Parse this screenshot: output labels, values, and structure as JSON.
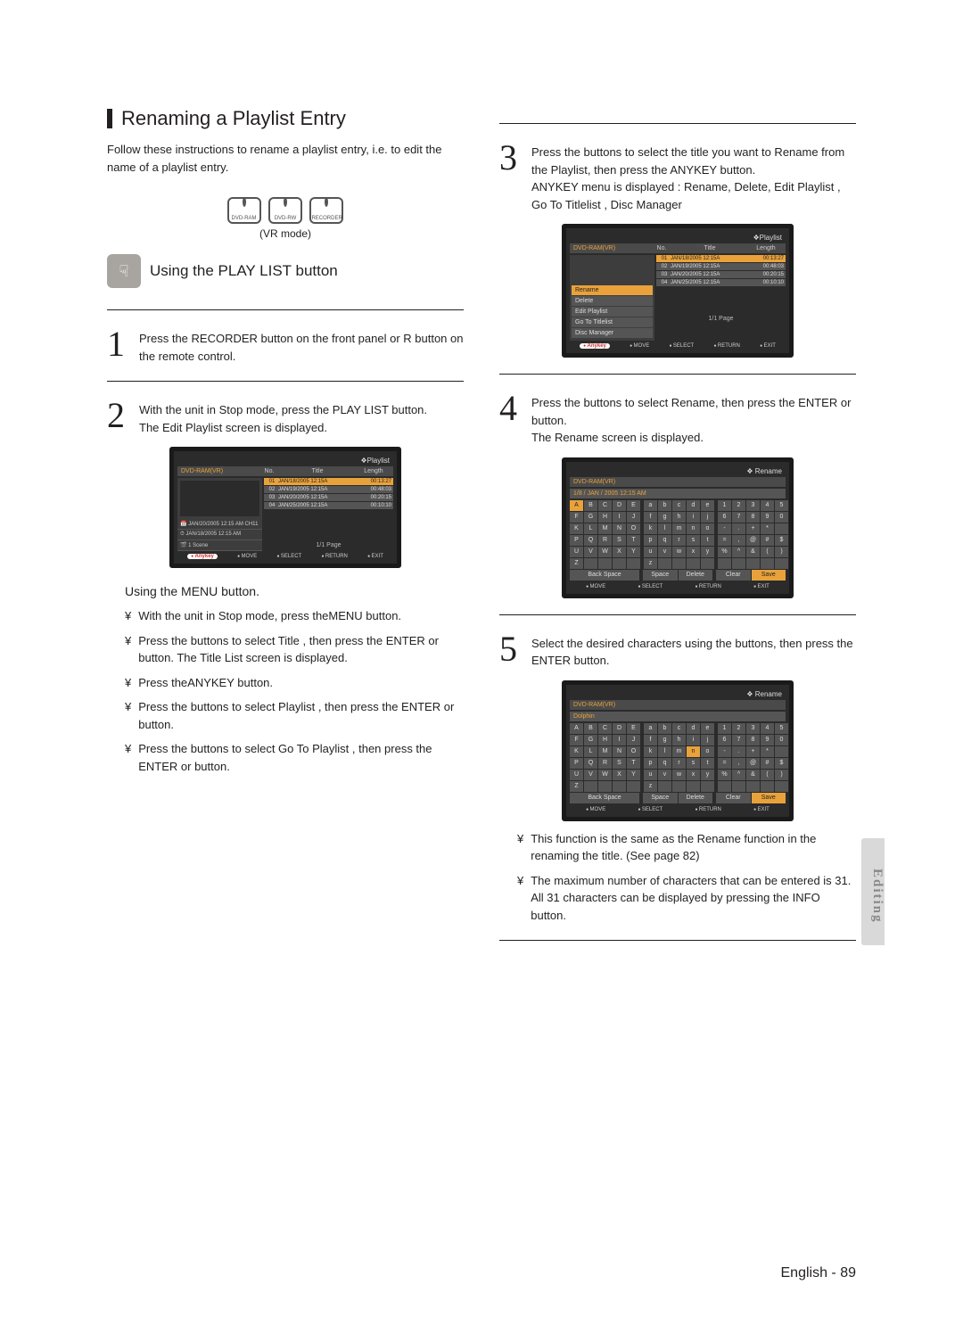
{
  "section_title": "Renaming a Playlist Entry",
  "intro": "Follow these instructions to rename a playlist entry, i.e. to edit the name of a playlist entry.",
  "badges": [
    "DVD-RAM",
    "DVD-RW",
    "RECORDER"
  ],
  "vr_mode": "(VR mode)",
  "sub1": "Using the PLAY LIST button",
  "step1": "Press the RECORDER button on the front panel or R button on the remote control.",
  "step2a": "With the unit in Stop mode, press the PLAY LIST button.",
  "step2b": "The Edit Playlist screen is displayed.",
  "menu_heading": "Using the MENU button.",
  "menu_bullets": [
    "With the unit in Stop mode, press theMENU button.",
    "Press the        buttons to select Title , then press the ENTER or        button. The Title List screen is displayed.",
    "Press theANYKEY button.",
    "Press the        buttons to select Playlist , then press the ENTER or        button.",
    "Press the        buttons to select Go To Playlist , then press the ENTER or        button."
  ],
  "step3": "Press the        buttons to select the title you want to Rename from the Playlist, then press the ANYKEY button.",
  "step3b": "ANYKEY menu is displayed : Rename, Delete, Edit Playlist , Go To Titlelist , Disc Manager",
  "step4": "Press the        buttons to select Rename, then press the ENTER or        button.",
  "step4b": "The Rename screen is displayed.",
  "step5": "Select the desired characters using the buttons, then press the ENTER button.",
  "notes": [
    "This function is the same as the Rename function in the renaming the title. (See page 82)",
    "The maximum number of characters that can be entered is 31. All 31 characters can be displayed by pressing the INFO button."
  ],
  "side_tab": "Editing",
  "page_footer": "English - 89",
  "ss_playlist": {
    "title": "Playlist",
    "device": "DVD-RAM(VR)",
    "cols": [
      "No.",
      "Title",
      "Length"
    ],
    "rows": [
      {
        "n": "01",
        "t": "JAN/18/2005 12:15A",
        "l": "00:13:27",
        "hl": true
      },
      {
        "n": "02",
        "t": "JAN/19/2005 12:15A",
        "l": "00:48:03"
      },
      {
        "n": "03",
        "t": "JAN/20/2005 12:15A",
        "l": "00:20:15"
      },
      {
        "n": "04",
        "t": "JAN/25/2005 12:15A",
        "l": "00:10:10"
      }
    ],
    "left_items": [
      "JAN/20/2005 12:15 AM CH11",
      "JAN/18/2005 12:15 AM",
      "1 Scene"
    ],
    "pager": "1/1 Page",
    "footer": [
      "MOVE",
      "SELECT",
      "RETURN",
      "EXIT"
    ],
    "anykey": "Anykey"
  },
  "ss_menu": {
    "title": "Playlist",
    "device": "DVD-RAM(VR)",
    "cols": [
      "No.",
      "Title",
      "Length"
    ],
    "rows": [
      {
        "n": "01",
        "t": "JAN/18/2005 12:15A",
        "l": "00:13:27",
        "hl": true
      },
      {
        "n": "02",
        "t": "JAN/19/2005 12:15A",
        "l": "00:48:03"
      },
      {
        "n": "03",
        "t": "JAN/20/2005 12:15A",
        "l": "00:20:15"
      },
      {
        "n": "04",
        "t": "JAN/25/2005 12:15A",
        "l": "00:10:10"
      }
    ],
    "menu_items": [
      {
        "label": "Rename",
        "hl": true
      },
      {
        "label": "Delete"
      },
      {
        "label": "Edit Playlist"
      },
      {
        "label": "Go To Titlelist"
      },
      {
        "label": "Disc Manager"
      }
    ],
    "pager": "1/1 Page",
    "footer": [
      "MOVE",
      "SELECT",
      "RETURN",
      "EXIT"
    ],
    "anykey": "Anykey"
  },
  "ss_rename1": {
    "title": "Rename",
    "device": "DVD-RAM(VR)",
    "namebar": "1/8 / JAN / 2005 12:15 AM",
    "upper": [
      [
        "A",
        "B",
        "C",
        "D",
        "E"
      ],
      [
        "F",
        "G",
        "H",
        "I",
        "J"
      ],
      [
        "K",
        "L",
        "M",
        "N",
        "O"
      ],
      [
        "P",
        "Q",
        "R",
        "S",
        "T"
      ],
      [
        "U",
        "V",
        "W",
        "X",
        "Y"
      ],
      [
        "Z",
        "",
        "",
        "",
        ""
      ]
    ],
    "lower": [
      [
        "a",
        "b",
        "c",
        "d",
        "e"
      ],
      [
        "f",
        "g",
        "h",
        "i",
        "j"
      ],
      [
        "k",
        "l",
        "m",
        "n",
        "o"
      ],
      [
        "p",
        "q",
        "r",
        "s",
        "t"
      ],
      [
        "u",
        "v",
        "w",
        "x",
        "y"
      ],
      [
        "z",
        "",
        "",
        "",
        ""
      ]
    ],
    "nums": [
      [
        "1",
        "2",
        "3",
        "4",
        "5"
      ],
      [
        "6",
        "7",
        "8",
        "9",
        "0"
      ],
      [
        "-",
        ".",
        "+",
        "*",
        ""
      ],
      [
        "=",
        ",",
        "@",
        "#",
        "$"
      ],
      [
        "%",
        "^",
        "&",
        "(",
        ")"
      ],
      [
        "",
        "",
        "",
        "",
        ""
      ]
    ],
    "bottom": [
      [
        "Back Space"
      ],
      [
        "Space",
        "Delete"
      ],
      [
        "Clear",
        "Save"
      ]
    ],
    "hl": {
      "r": 0,
      "c": 0,
      "block": 0
    },
    "footer": [
      "MOVE",
      "SELECT",
      "RETURN",
      "EXIT"
    ]
  },
  "ss_rename2": {
    "title": "Rename",
    "device": "DVD-RAM(VR)",
    "namebar": "Dolphin",
    "upper": [
      [
        "A",
        "B",
        "C",
        "D",
        "E"
      ],
      [
        "F",
        "G",
        "H",
        "I",
        "J"
      ],
      [
        "K",
        "L",
        "M",
        "N",
        "O"
      ],
      [
        "P",
        "Q",
        "R",
        "S",
        "T"
      ],
      [
        "U",
        "V",
        "W",
        "X",
        "Y"
      ],
      [
        "Z",
        "",
        "",
        "",
        ""
      ]
    ],
    "lower": [
      [
        "a",
        "b",
        "c",
        "d",
        "e"
      ],
      [
        "f",
        "g",
        "h",
        "i",
        "j"
      ],
      [
        "k",
        "l",
        "m",
        "n",
        "o"
      ],
      [
        "p",
        "q",
        "r",
        "s",
        "t"
      ],
      [
        "u",
        "v",
        "w",
        "x",
        "y"
      ],
      [
        "z",
        "",
        "",
        "",
        ""
      ]
    ],
    "nums": [
      [
        "1",
        "2",
        "3",
        "4",
        "5"
      ],
      [
        "6",
        "7",
        "8",
        "9",
        "0"
      ],
      [
        "-",
        ".",
        "+",
        "*",
        ""
      ],
      [
        "=",
        ",",
        "@",
        "#",
        "$"
      ],
      [
        "%",
        "^",
        "&",
        "(",
        ")"
      ],
      [
        "",
        "",
        "",
        "",
        ""
      ]
    ],
    "bottom": [
      [
        "Back Space"
      ],
      [
        "Space",
        "Delete"
      ],
      [
        "Clear",
        "Save"
      ]
    ],
    "hl": {
      "r": 2,
      "c": 3,
      "block": 1
    },
    "footer": [
      "MOVE",
      "SELECT",
      "RETURN",
      "EXIT"
    ]
  }
}
